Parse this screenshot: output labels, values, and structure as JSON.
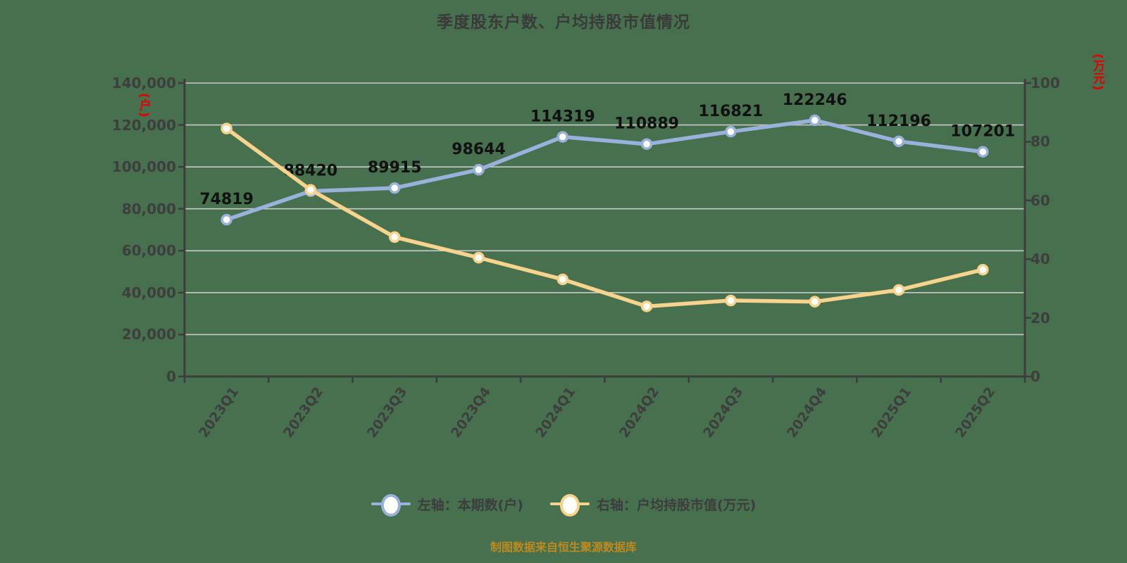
{
  "title": "季度股东户数、户均持股市值情况",
  "caption": "制图数据来自恒生聚源数据库",
  "colors": {
    "background": "#47704E",
    "blue_series": "#9AB2DB",
    "yellow_series": "#F8D38E",
    "grid": "#C9C9C9",
    "axis": "#3D3D3D",
    "tick_text": "#3E3E3E",
    "data_label": "#111111",
    "unit_red": "#E60000",
    "caption_text": "#BE8A20",
    "marker_fill": "#FFFFFF"
  },
  "left_axis": {
    "unit": "(户)",
    "min": 0,
    "max": 140000,
    "step": 20000,
    "tick_labels": [
      "0",
      "20,000",
      "40,000",
      "60,000",
      "80,000",
      "100,000",
      "120,000",
      "140,000"
    ]
  },
  "right_axis": {
    "unit": "(万元)",
    "min": 0,
    "max": 100,
    "step": 20,
    "tick_labels": [
      "0",
      "20",
      "40",
      "60",
      "80",
      "100"
    ]
  },
  "legend": [
    {
      "label": "左轴：本期数(户)",
      "series": "households"
    },
    {
      "label": "右轴：户均持股市值(万元)",
      "series": "avg_value"
    }
  ],
  "chart_data": {
    "type": "line",
    "categories": [
      "2023Q1",
      "2023Q2",
      "2023Q3",
      "2023Q4",
      "2024Q1",
      "2024Q2",
      "2024Q3",
      "2024Q4",
      "2025Q1",
      "2025Q2"
    ],
    "series": [
      {
        "name": "左轴：本期数(户)",
        "axis": "left",
        "color": "#9AB2DB",
        "values": [
          74819,
          88420,
          89915,
          98644,
          114319,
          110889,
          116821,
          122246,
          112196,
          107201
        ],
        "show_labels": true
      },
      {
        "name": "右轴：户均持股市值(万元)",
        "axis": "right",
        "color": "#F8D38E",
        "values": [
          84.5,
          63.6,
          47.5,
          40.5,
          33.1,
          23.9,
          25.9,
          25.5,
          29.5,
          36.4
        ],
        "show_labels": false
      }
    ],
    "left_ylim": [
      0,
      140000
    ],
    "right_ylim": [
      0,
      100
    ],
    "grid": true,
    "legend_position": "bottom",
    "x_label_rotation_deg": -55
  }
}
